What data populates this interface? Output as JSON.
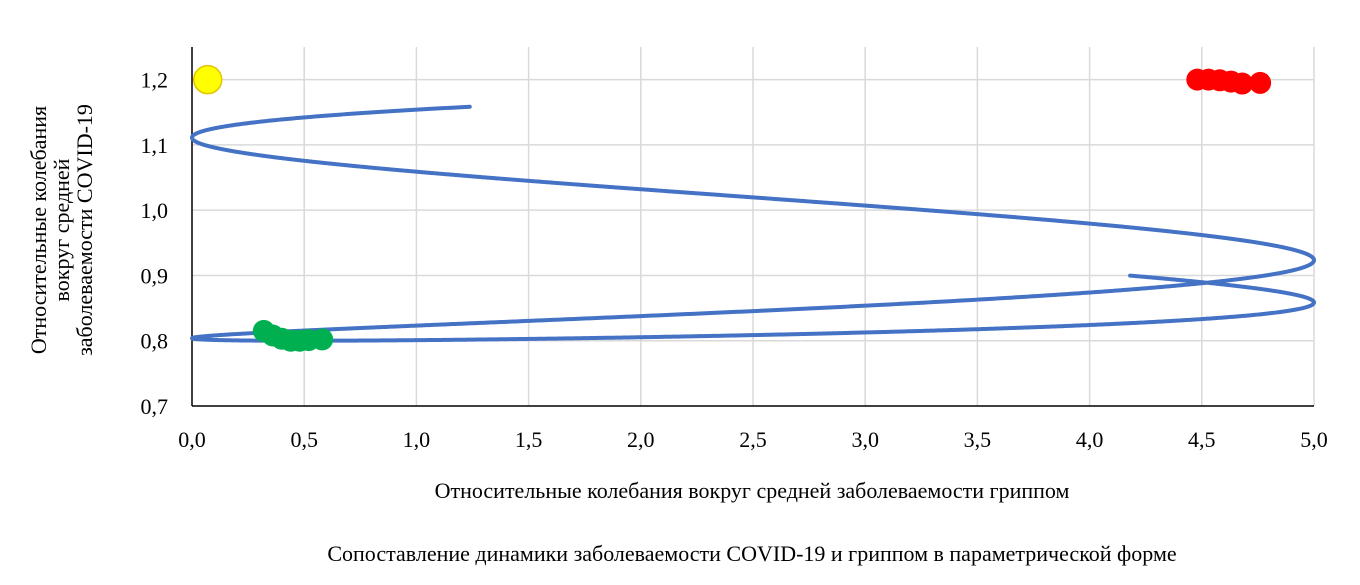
{
  "chart_data": {
    "type": "scatter",
    "caption": "Сопоставление динамики заболеваемости COVID-19 и гриппом в параметрической форме",
    "xlabel": "Относительные колебания вокруг средней заболеваемости гриппом",
    "ylabel_lines": [
      "Относительные колебания",
      "вокруг средней",
      "заболеваемости COVID-19"
    ],
    "xlim": [
      0,
      5
    ],
    "ylim": [
      0.7,
      1.25
    ],
    "x_ticks": [
      0,
      0.5,
      1,
      1.5,
      2,
      2.5,
      3,
      3.5,
      4,
      4.5,
      5
    ],
    "x_tick_labels": [
      "0,0",
      "0,5",
      "1,0",
      "1,5",
      "2,0",
      "2,5",
      "3,0",
      "3,5",
      "4,0",
      "4,5",
      "5,0"
    ],
    "y_ticks": [
      0.7,
      0.8,
      0.9,
      1.0,
      1.1,
      1.2
    ],
    "y_tick_labels": [
      "0,7",
      "0,8",
      "0,9",
      "1,0",
      "1,1",
      "1,2"
    ],
    "grid": true,
    "series": [
      {
        "color": "#4472c4",
        "curve": {
          "form": "lissajous",
          "x_center": 2.5,
          "x_amplitude": 2.5,
          "y_center": 1.0,
          "y_amplitude": 0.2,
          "frequency_ratio": 3.2,
          "phase_start": 2.1,
          "phase_end": 13.4
        }
      },
      {
        "color": "#00b050",
        "points": [
          {
            "x": 0.32,
            "y": 0.815
          },
          {
            "x": 0.36,
            "y": 0.808
          },
          {
            "x": 0.4,
            "y": 0.803
          },
          {
            "x": 0.44,
            "y": 0.8
          },
          {
            "x": 0.48,
            "y": 0.8
          },
          {
            "x": 0.52,
            "y": 0.801
          },
          {
            "x": 0.58,
            "y": 0.802
          }
        ]
      },
      {
        "color": "#ff0000",
        "points": [
          {
            "x": 4.48,
            "y": 1.2
          },
          {
            "x": 4.53,
            "y": 1.2
          },
          {
            "x": 4.58,
            "y": 1.199
          },
          {
            "x": 4.63,
            "y": 1.197
          },
          {
            "x": 4.68,
            "y": 1.194
          },
          {
            "x": 4.76,
            "y": 1.195
          }
        ]
      },
      {
        "color": "#ffff00",
        "points": [
          {
            "x": 0.07,
            "y": 1.2
          }
        ]
      }
    ]
  }
}
